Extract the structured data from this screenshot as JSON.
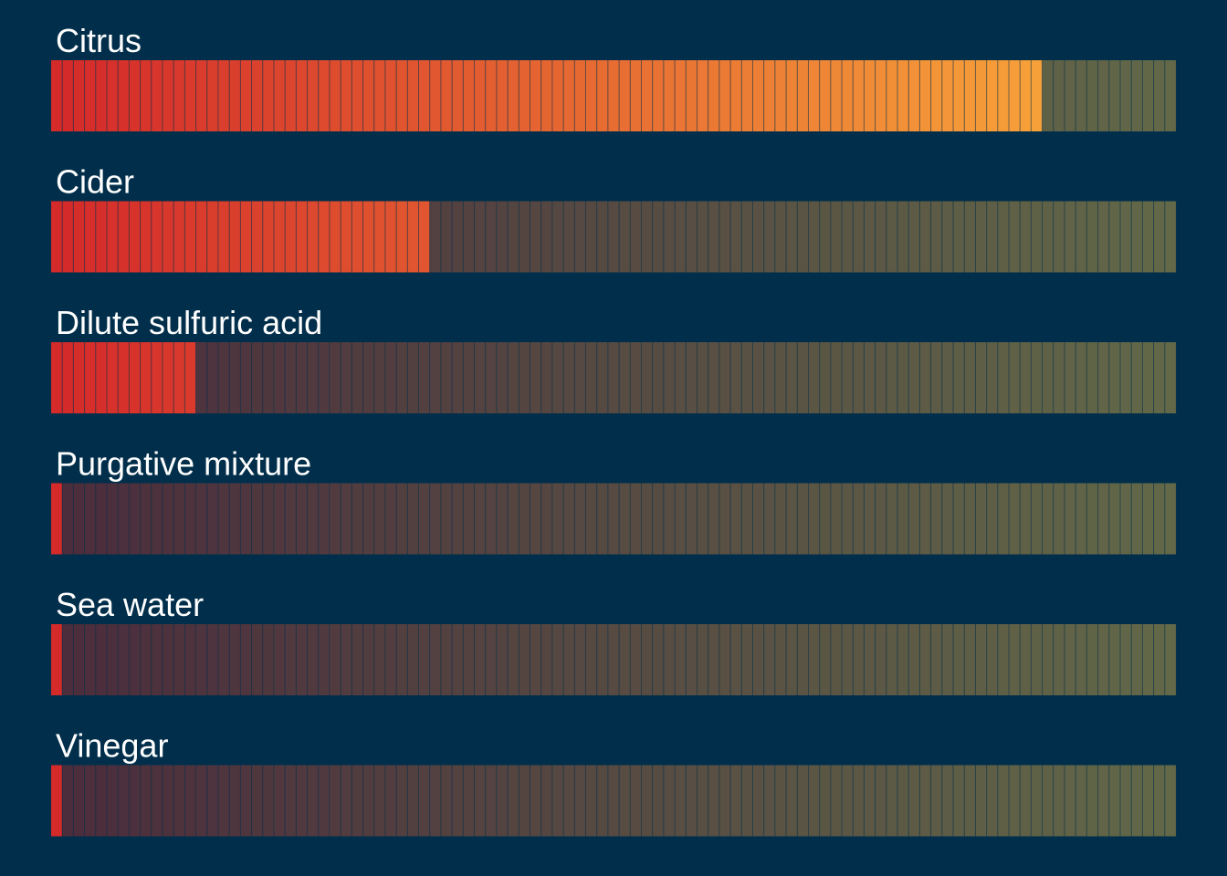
{
  "chart_data": {
    "type": "bar",
    "orientation": "horizontal",
    "style": "segmented-gauge",
    "segments_total": 101,
    "scale_min": 0,
    "scale_max": 100,
    "categories": [
      "Citrus",
      "Cider",
      "Dilute sulfuric acid",
      "Purgative mixture",
      "Sea water",
      "Vinegar"
    ],
    "values": [
      88,
      33,
      12,
      0,
      0,
      0
    ],
    "title": "",
    "xlabel": "",
    "ylabel": "",
    "colors": {
      "background": "#012f4b",
      "filled_start": "#d42a2a",
      "filled_end": "#fbb03b",
      "empty_start": "#4b2c3c",
      "empty_end": "#626848",
      "separator": "#012f4b",
      "label": "#ffffff"
    }
  }
}
